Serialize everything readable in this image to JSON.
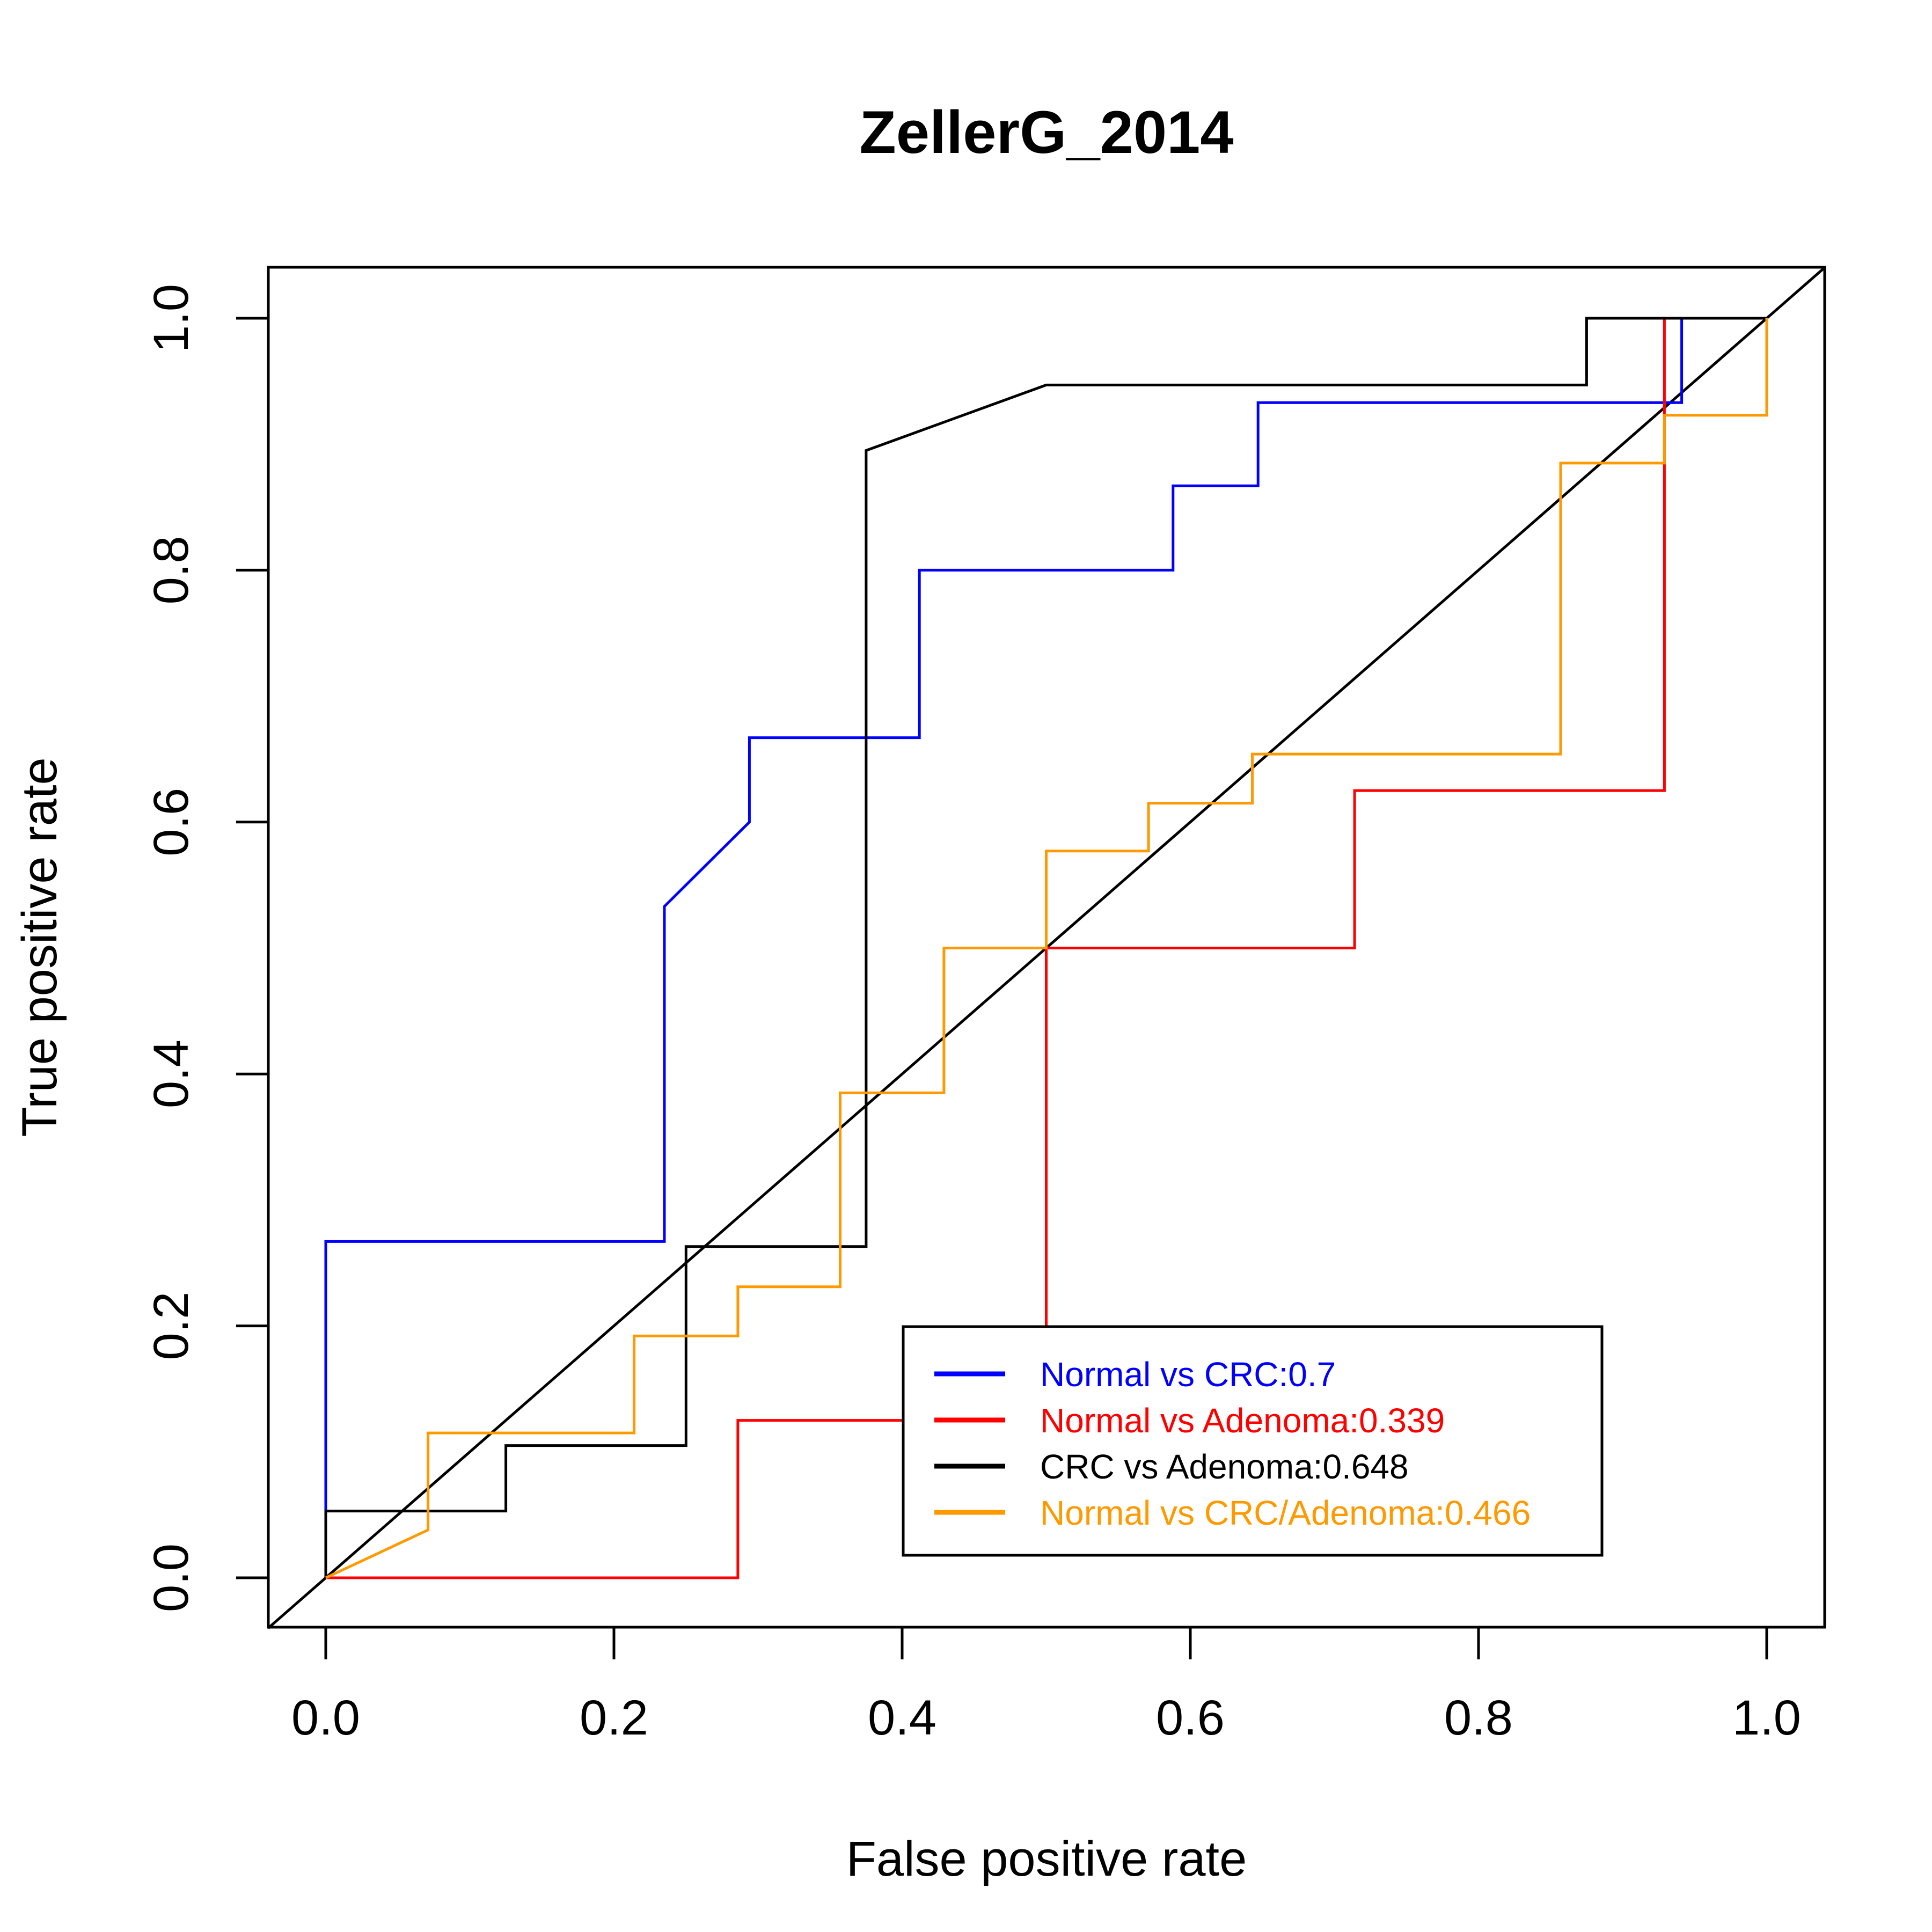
{
  "chart_data": {
    "type": "line",
    "title": "ZellerG_2014",
    "xlabel": "False positive rate",
    "ylabel": "True positive rate",
    "xlim": [
      0,
      1
    ],
    "ylim": [
      0,
      1
    ],
    "xticks": [
      "0.0",
      "0.2",
      "0.4",
      "0.6",
      "0.8",
      "1.0"
    ],
    "yticks": [
      "0.0",
      "0.2",
      "0.4",
      "0.6",
      "0.8",
      "1.0"
    ],
    "grid": false,
    "legend_position": "bottom-right",
    "reference_line": {
      "from": [
        0,
        0
      ],
      "to": [
        1,
        1
      ],
      "color": "#000000"
    },
    "series": [
      {
        "name": "Normal vs CRC:0.7",
        "color": "#0000ff",
        "points": [
          [
            0,
            0
          ],
          [
            0,
            0.267
          ],
          [
            0.235,
            0.267
          ],
          [
            0.235,
            0.533
          ],
          [
            0.294,
            0.6
          ],
          [
            0.294,
            0.667
          ],
          [
            0.412,
            0.667
          ],
          [
            0.412,
            0.8
          ],
          [
            0.588,
            0.8
          ],
          [
            0.588,
            0.867
          ],
          [
            0.647,
            0.867
          ],
          [
            0.647,
            0.933
          ],
          [
            0.941,
            0.933
          ],
          [
            0.941,
            1.0
          ],
          [
            1.0,
            1.0
          ]
        ]
      },
      {
        "name": "Normal vs Adenoma:0.339",
        "color": "#ff0000",
        "points": [
          [
            0,
            0
          ],
          [
            0.286,
            0
          ],
          [
            0.286,
            0.125
          ],
          [
            0.5,
            0.125
          ],
          [
            0.5,
            0.5
          ],
          [
            0.714,
            0.5
          ],
          [
            0.714,
            0.625
          ],
          [
            0.929,
            0.625
          ],
          [
            0.929,
            1.0
          ],
          [
            1.0,
            1.0
          ]
        ]
      },
      {
        "name": "CRC vs Adenoma:0.648",
        "color": "#000000",
        "points": [
          [
            0,
            0
          ],
          [
            0,
            0.053
          ],
          [
            0.125,
            0.053
          ],
          [
            0.125,
            0.105
          ],
          [
            0.25,
            0.105
          ],
          [
            0.25,
            0.263
          ],
          [
            0.375,
            0.263
          ],
          [
            0.375,
            0.895
          ],
          [
            0.5,
            0.947
          ],
          [
            0.875,
            0.947
          ],
          [
            0.875,
            1.0
          ],
          [
            1.0,
            1.0
          ]
        ]
      },
      {
        "name": "Normal vs CRC/Adenoma:0.466",
        "color": "#ff9900",
        "points": [
          [
            0,
            0
          ],
          [
            0.071,
            0.038
          ],
          [
            0.071,
            0.115
          ],
          [
            0.214,
            0.115
          ],
          [
            0.214,
            0.192
          ],
          [
            0.286,
            0.192
          ],
          [
            0.286,
            0.231
          ],
          [
            0.357,
            0.231
          ],
          [
            0.357,
            0.385
          ],
          [
            0.429,
            0.385
          ],
          [
            0.429,
            0.5
          ],
          [
            0.5,
            0.5
          ],
          [
            0.5,
            0.577
          ],
          [
            0.571,
            0.577
          ],
          [
            0.571,
            0.615
          ],
          [
            0.643,
            0.615
          ],
          [
            0.643,
            0.654
          ],
          [
            0.857,
            0.654
          ],
          [
            0.857,
            0.885
          ],
          [
            0.929,
            0.885
          ],
          [
            0.929,
            0.923
          ],
          [
            1.0,
            0.923
          ],
          [
            1.0,
            1.0
          ]
        ]
      }
    ]
  }
}
